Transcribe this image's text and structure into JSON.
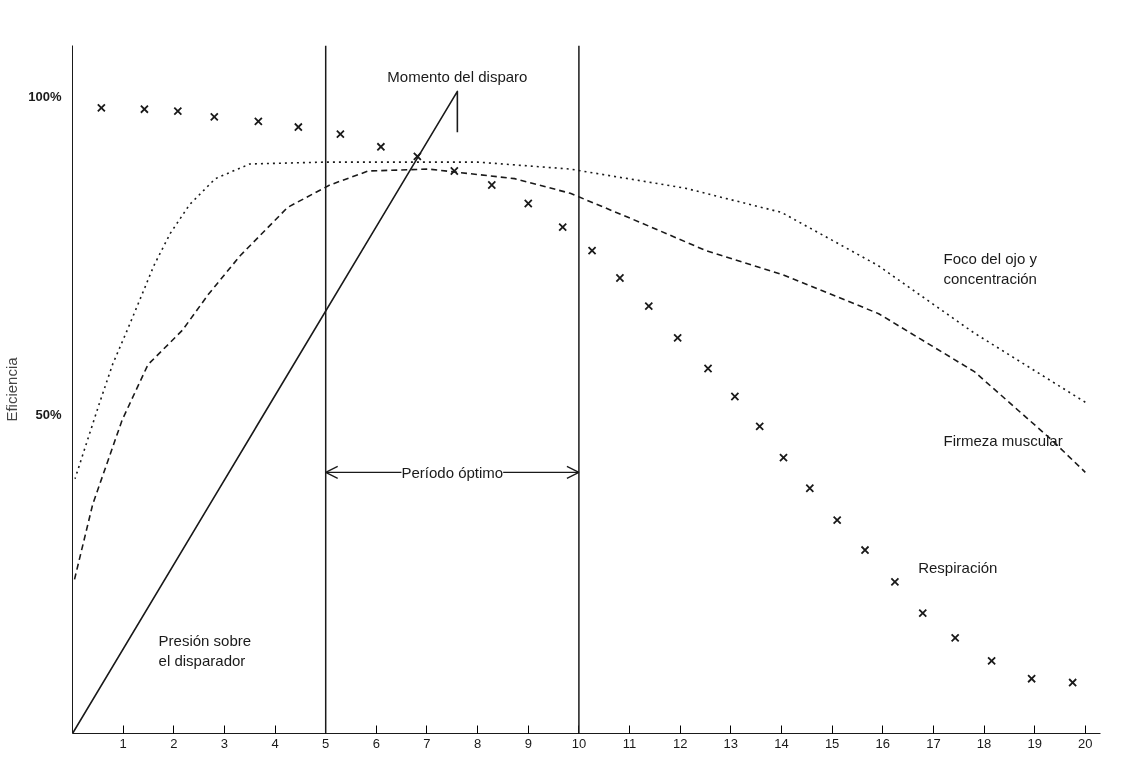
{
  "chart_data": {
    "type": "line",
    "ylabel": "Eficiencia",
    "xlim": [
      0,
      20.3
    ],
    "ylim": [
      0,
      108
    ],
    "xticks": [
      1,
      2,
      3,
      4,
      5,
      6,
      7,
      8,
      9,
      10,
      11,
      12,
      13,
      14,
      15,
      16,
      17,
      18,
      19,
      20
    ],
    "yticks": [
      {
        "value": 50,
        "label": "50%"
      },
      {
        "value": 100,
        "label": "100%"
      }
    ],
    "grid": false,
    "series": [
      {
        "name": "Foco del ojo y concentración",
        "line_style": "dotted",
        "color": "#1a1a1a",
        "x": [
          0.05,
          0.53,
          0.79,
          1.08,
          1.32,
          1.61,
          1.93,
          2.31,
          2.82,
          3.5,
          5.0,
          8.0,
          9.83,
          12.1,
          14.0,
          15.9,
          17.8,
          20.0
        ],
        "values": [
          40,
          51.8,
          57.9,
          63.3,
          67.9,
          73.5,
          78.5,
          83.0,
          87.1,
          89.4,
          89.7,
          89.7,
          88.6,
          85.6,
          81.8,
          73.5,
          62.9,
          52
        ]
      },
      {
        "name": "Firmeza muscular",
        "line_style": "dashed",
        "color": "#1a1a1a",
        "x": [
          0.04,
          0.4,
          0.98,
          1.49,
          2.17,
          2.68,
          3.31,
          4.25,
          5.08,
          5.84,
          7.03,
          8.73,
          9.83,
          11.19,
          12.51,
          14.03,
          15.92,
          17.81,
          19.32,
          20.0
        ],
        "values": [
          24.2,
          36,
          49.2,
          57.9,
          63.3,
          68.9,
          75.0,
          82.6,
          86.1,
          88.3,
          88.6,
          87.1,
          84.8,
          80.3,
          75.8,
          72.0,
          65.9,
          56.8,
          46.2,
          41
        ]
      },
      {
        "name": "Presión sobre el disparador",
        "line_style": "solid",
        "color": "#1a1a1a",
        "x": [
          0,
          7.6,
          7.6
        ],
        "values": [
          0,
          100.8,
          94.4
        ]
      },
      {
        "name": "Respiración",
        "type": "scatter",
        "marker": "cross",
        "color": "#1a1a1a",
        "x": [
          0.57,
          1.42,
          2.08,
          2.8,
          3.67,
          4.46,
          5.29,
          6.09,
          6.81,
          7.54,
          8.28,
          9.0,
          9.68,
          10.26,
          10.81,
          11.38,
          11.95,
          12.55,
          13.08,
          13.57,
          14.04,
          14.56,
          15.1,
          15.65,
          16.24,
          16.79,
          17.43,
          18.15,
          18.94,
          19.75
        ],
        "values": [
          98.2,
          98.0,
          97.7,
          96.8,
          96.1,
          95.2,
          94.1,
          92.1,
          90.6,
          88.3,
          86.1,
          83.2,
          79.5,
          75.8,
          71.5,
          67.1,
          62.1,
          57.3,
          52.9,
          48.2,
          43.3,
          38.5,
          33.5,
          28.8,
          23.8,
          18.9,
          15.0,
          11.4,
          8.6,
          8.0
        ]
      }
    ],
    "ref_lines": [
      {
        "axis": "x",
        "value": 5,
        "color": "#1a1a1a"
      },
      {
        "axis": "x",
        "value": 10,
        "color": "#1a1a1a"
      }
    ],
    "annotations": [
      {
        "text": "Momento del disparo",
        "x": 7.6,
        "y": 100.8
      },
      {
        "text": "Período óptimo",
        "x": 5,
        "y": 41
      }
    ]
  }
}
